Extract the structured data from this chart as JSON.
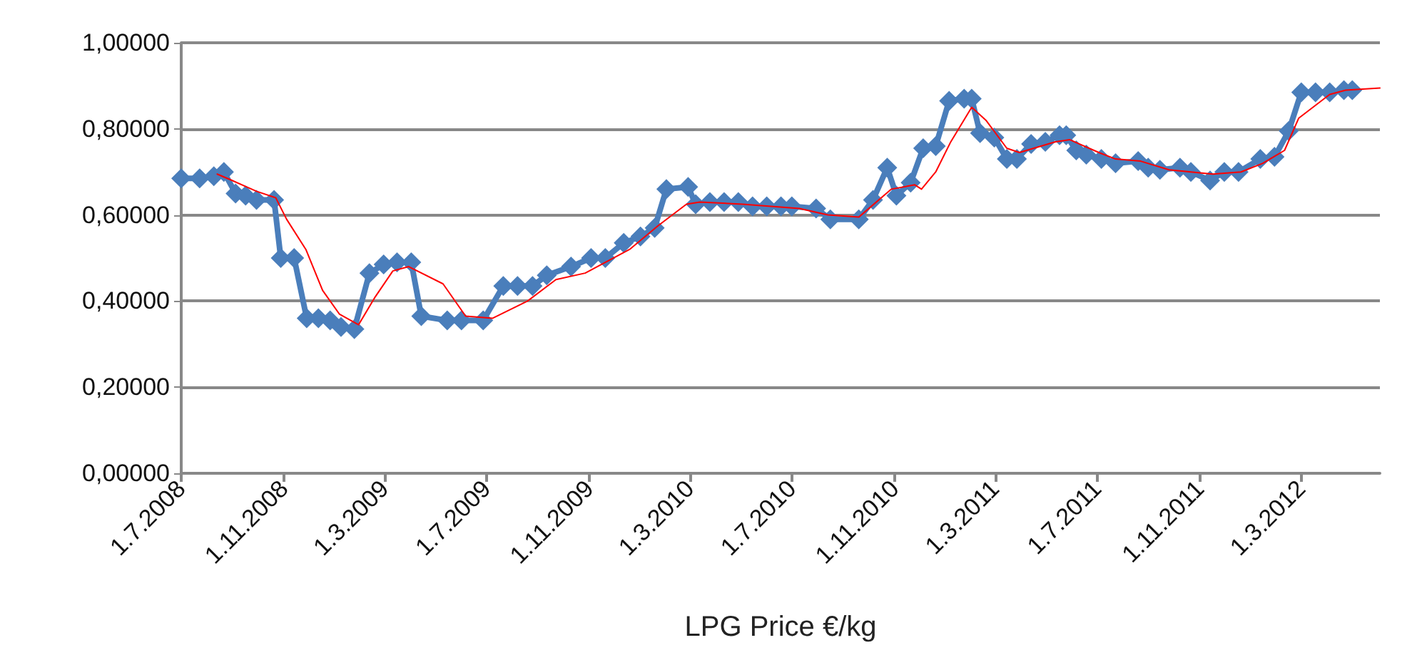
{
  "chart_data": {
    "type": "line",
    "xlabel": "LPG Price €/kg",
    "xlim": [
      "2008-07-01",
      "2012-06-03"
    ],
    "xticks": [
      {
        "value": "2008-07-01",
        "label": "1.7.2008"
      },
      {
        "value": "2008-11-01",
        "label": "1.11.2008"
      },
      {
        "value": "2009-03-01",
        "label": "1.3.2009"
      },
      {
        "value": "2009-07-01",
        "label": "1.7.2009"
      },
      {
        "value": "2009-11-01",
        "label": "1.11.2009"
      },
      {
        "value": "2010-03-01",
        "label": "1.3.2010"
      },
      {
        "value": "2010-07-01",
        "label": "1.7.2010"
      },
      {
        "value": "2010-11-01",
        "label": "1.11.2010"
      },
      {
        "value": "2011-03-01",
        "label": "1.3.2011"
      },
      {
        "value": "2011-07-01",
        "label": "1.7.2011"
      },
      {
        "value": "2011-11-01",
        "label": "1.11.2011"
      },
      {
        "value": "2012-03-01",
        "label": "1.3.2012"
      }
    ],
    "ylim": [
      0,
      1
    ],
    "yticks": [
      {
        "value": 0,
        "label": "0,00000"
      },
      {
        "value": 0.2,
        "label": "0,20000"
      },
      {
        "value": 0.4,
        "label": "0,40000"
      },
      {
        "value": 0.6,
        "label": "0,60000"
      },
      {
        "value": 0.8,
        "label": "0,80000"
      },
      {
        "value": 1,
        "label": "1,00000"
      }
    ],
    "grid": "y",
    "line_style": "solid",
    "series": [
      {
        "color": "#4a7ebb",
        "marker": "diamond",
        "x": [
          "2008-07-01",
          "2008-07-23",
          "2008-08-09",
          "2008-08-21",
          "2008-09-04",
          "2008-09-16",
          "2008-09-29",
          "2008-10-20",
          "2008-10-28",
          "2008-11-13",
          "2008-11-28",
          "2008-12-12",
          "2008-12-26",
          "2009-01-08",
          "2009-01-24",
          "2009-02-11",
          "2009-02-28",
          "2009-03-16",
          "2009-04-02",
          "2009-04-14",
          "2009-05-15",
          "2009-06-01",
          "2009-06-27",
          "2009-07-21",
          "2009-08-07",
          "2009-08-25",
          "2009-09-11",
          "2009-10-10",
          "2009-11-03",
          "2009-11-20",
          "2009-12-12",
          "2010-01-01",
          "2010-01-18",
          "2010-02-01",
          "2010-02-27",
          "2010-03-08",
          "2010-03-25",
          "2010-04-11",
          "2010-04-28",
          "2010-05-15",
          "2010-06-01",
          "2010-06-18",
          "2010-07-01",
          "2010-07-30",
          "2010-08-16",
          "2010-09-19",
          "2010-10-06",
          "2010-10-23",
          "2010-11-03",
          "2010-11-20",
          "2010-12-05",
          "2010-12-20",
          "2011-01-05",
          "2011-01-23",
          "2011-02-01",
          "2011-02-11",
          "2011-02-28",
          "2011-03-15",
          "2011-03-27",
          "2011-04-13",
          "2011-04-30",
          "2011-05-17",
          "2011-05-25",
          "2011-06-06",
          "2011-06-18",
          "2011-07-06",
          "2011-07-23",
          "2011-08-19",
          "2011-08-31",
          "2011-09-14",
          "2011-10-08",
          "2011-10-21",
          "2011-11-13",
          "2011-11-30",
          "2011-12-17",
          "2012-01-12",
          "2012-01-29",
          "2012-02-15",
          "2012-03-01",
          "2012-03-18",
          "2012-04-04",
          "2012-04-21",
          "2012-05-01"
        ],
        "values": [
          0.685,
          0.685,
          0.69,
          0.7,
          0.65,
          0.645,
          0.635,
          0.635,
          0.5,
          0.5,
          0.36,
          0.36,
          0.355,
          0.34,
          0.335,
          0.465,
          0.485,
          0.49,
          0.49,
          0.365,
          0.355,
          0.355,
          0.355,
          0.435,
          0.435,
          0.435,
          0.46,
          0.48,
          0.5,
          0.5,
          0.535,
          0.55,
          0.57,
          0.66,
          0.665,
          0.625,
          0.63,
          0.63,
          0.63,
          0.62,
          0.62,
          0.62,
          0.62,
          0.615,
          0.59,
          0.59,
          0.635,
          0.71,
          0.645,
          0.675,
          0.755,
          0.76,
          0.865,
          0.87,
          0.87,
          0.79,
          0.78,
          0.73,
          0.73,
          0.765,
          0.77,
          0.785,
          0.785,
          0.75,
          0.74,
          0.73,
          0.72,
          0.725,
          0.71,
          0.705,
          0.71,
          0.7,
          0.68,
          0.7,
          0.7,
          0.73,
          0.735,
          0.795,
          0.885,
          0.885,
          0.885,
          0.89,
          0.89
        ]
      },
      {
        "color": "#ff0000",
        "marker": "none",
        "x": [
          "2008-08-13",
          "2008-08-31",
          "2008-09-29",
          "2008-10-22",
          "2008-11-04",
          "2008-11-27",
          "2008-12-17",
          "2009-01-06",
          "2009-01-29",
          "2009-02-18",
          "2009-03-11",
          "2009-03-30",
          "2009-05-10",
          "2009-06-06",
          "2009-07-08",
          "2009-08-19",
          "2009-09-22",
          "2009-10-27",
          "2009-12-19",
          "2010-01-22",
          "2010-02-25",
          "2010-03-13",
          "2010-05-03",
          "2010-07-10",
          "2010-08-13",
          "2010-09-19",
          "2010-10-28",
          "2010-11-25",
          "2010-12-03",
          "2010-12-20",
          "2011-01-07",
          "2011-02-01",
          "2011-02-18",
          "2011-03-15",
          "2011-03-30",
          "2011-05-12",
          "2011-05-29",
          "2011-07-03",
          "2011-07-23",
          "2011-08-22",
          "2011-09-25",
          "2011-11-16",
          "2011-12-20",
          "2012-01-15",
          "2012-02-10",
          "2012-02-27",
          "2012-04-04",
          "2012-04-23",
          "2012-06-03"
        ],
        "values": [
          0.695,
          0.68,
          0.655,
          0.64,
          0.59,
          0.52,
          0.425,
          0.37,
          0.345,
          0.41,
          0.47,
          0.48,
          0.44,
          0.365,
          0.36,
          0.4,
          0.45,
          0.465,
          0.52,
          0.575,
          0.625,
          0.63,
          0.625,
          0.615,
          0.6,
          0.595,
          0.66,
          0.67,
          0.66,
          0.7,
          0.77,
          0.85,
          0.82,
          0.755,
          0.745,
          0.77,
          0.775,
          0.745,
          0.73,
          0.725,
          0.705,
          0.695,
          0.7,
          0.72,
          0.75,
          0.825,
          0.88,
          0.89,
          0.895
        ]
      }
    ]
  }
}
